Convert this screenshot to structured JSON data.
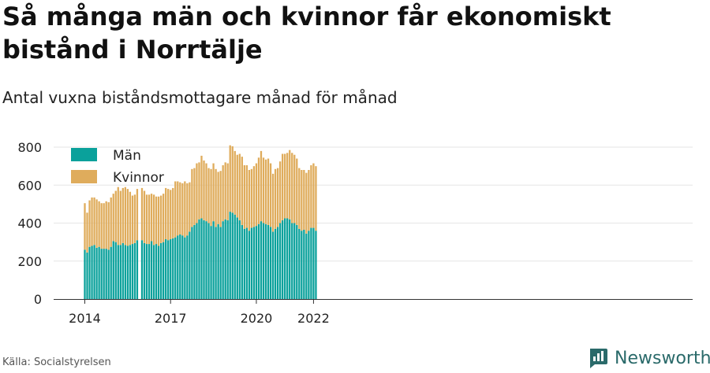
{
  "title": "Så många män och kvinnor får ekonomiskt bistånd i Norrtälje",
  "subtitle": "Antal vuxna biståndsmottagare månad för månad",
  "source": "Källa: Socialstyrelsen",
  "brand": {
    "name": "Newsworthy",
    "icon": "newsworthy-logo-icon"
  },
  "colors": {
    "man": "#0aa19b",
    "kvinnor": "#dfac5c",
    "grid": "#e6e6e6",
    "axis": "#333333"
  },
  "chart_data": {
    "type": "bar",
    "stacked": true,
    "start": "2014-01",
    "x_ticks": [
      "2014",
      "2017",
      "2020",
      "2022"
    ],
    "ylim": [
      0,
      850
    ],
    "y_ticks": [
      0,
      200,
      400,
      600,
      800
    ],
    "grid": true,
    "legend": "top-left",
    "series": [
      {
        "name": "Män",
        "values": [
          260,
          245,
          275,
          280,
          285,
          270,
          275,
          265,
          265,
          265,
          260,
          275,
          305,
          300,
          285,
          285,
          295,
          285,
          280,
          285,
          290,
          295,
          310,
          null,
          310,
          295,
          290,
          290,
          305,
          285,
          290,
          280,
          295,
          300,
          315,
          310,
          315,
          320,
          325,
          335,
          340,
          335,
          325,
          335,
          355,
          380,
          390,
          400,
          420,
          425,
          415,
          410,
          400,
          385,
          410,
          380,
          395,
          380,
          410,
          420,
          415,
          460,
          455,
          445,
          430,
          415,
          390,
          370,
          375,
          360,
          375,
          380,
          385,
          395,
          410,
          400,
          395,
          390,
          380,
          355,
          370,
          380,
          400,
          415,
          425,
          425,
          420,
          400,
          400,
          390,
          370,
          360,
          365,
          345,
          360,
          375,
          375,
          360
        ],
        "color": "#0aa19b"
      },
      {
        "name": "Kvinnor",
        "values": [
          245,
          210,
          245,
          255,
          250,
          255,
          240,
          240,
          240,
          250,
          250,
          260,
          250,
          270,
          305,
          285,
          290,
          305,
          300,
          280,
          255,
          255,
          270,
          null,
          275,
          275,
          260,
          260,
          250,
          265,
          250,
          260,
          250,
          255,
          270,
          270,
          260,
          265,
          295,
          285,
          275,
          275,
          295,
          275,
          260,
          305,
          300,
          315,
          300,
          330,
          315,
          305,
          290,
          300,
          305,
          305,
          275,
          295,
          295,
          300,
          300,
          350,
          350,
          335,
          330,
          350,
          360,
          335,
          330,
          320,
          310,
          320,
          330,
          350,
          370,
          345,
          340,
          350,
          335,
          305,
          315,
          310,
          325,
          350,
          340,
          345,
          365,
          370,
          360,
          350,
          320,
          320,
          315,
          320,
          320,
          330,
          340,
          340
        ]
      }
    ]
  }
}
